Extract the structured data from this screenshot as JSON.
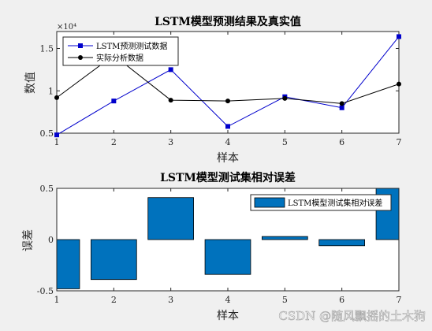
{
  "figure": {
    "background": "#f0f0f0",
    "watermark": "CSDN @随风飘摇的土木狗"
  },
  "chart_data": [
    {
      "type": "line",
      "title": "LSTM模型预测结果及真实值",
      "xlabel": "样本",
      "ylabel": "数值",
      "y_exponent": "×10⁴",
      "xlim": [
        1,
        7
      ],
      "ylim": [
        0.5,
        1.7
      ],
      "x_ticks": [
        1,
        2,
        3,
        4,
        5,
        6,
        7
      ],
      "y_ticks": [
        0.5,
        1,
        1.5
      ],
      "y_tick_labels": [
        "0.5",
        "1",
        "1.5"
      ],
      "grid": false,
      "legend_position": "top-left",
      "x": [
        1,
        2,
        3,
        4,
        5,
        6,
        7
      ],
      "series": [
        {
          "name": "LSTM预测测试数据",
          "color": "#0000cc",
          "marker": "square",
          "values": [
            0.48,
            0.88,
            1.25,
            0.58,
            0.93,
            0.8,
            1.64
          ]
        },
        {
          "name": "实际分析数据",
          "color": "#000000",
          "marker": "circle",
          "values": [
            0.92,
            1.42,
            0.89,
            0.88,
            0.91,
            0.85,
            1.08
          ]
        }
      ]
    },
    {
      "type": "bar",
      "title": "LSTM模型测试集相对误差",
      "xlabel": "样本",
      "ylabel": "误差",
      "xlim": [
        1,
        7
      ],
      "ylim": [
        -0.5,
        0.5
      ],
      "x_ticks": [
        1,
        2,
        3,
        4,
        5,
        6,
        7
      ],
      "y_ticks": [
        -0.5,
        0,
        0.5
      ],
      "y_tick_labels": [
        "-0.5",
        "0",
        "0.5"
      ],
      "grid": false,
      "legend_position": "top-right",
      "categories": [
        1,
        2,
        3,
        4,
        5,
        6,
        7
      ],
      "series": [
        {
          "name": "LSTM模型测试集相对误差",
          "color": "#0072bd",
          "values": [
            -0.48,
            -0.39,
            0.41,
            -0.34,
            0.03,
            -0.06,
            0.55
          ]
        }
      ]
    }
  ]
}
